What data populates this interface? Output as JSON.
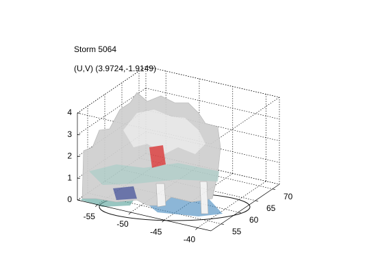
{
  "chart_data": {
    "type": "surface3d",
    "title": "Storm 5064",
    "subtitle": "(U,V) (3.9724,-1.9149)",
    "xlim": [
      -58,
      -38
    ],
    "xticks": [
      -55,
      -50,
      -45,
      -40
    ],
    "ylim": [
      52,
      72
    ],
    "yticks": [
      55,
      60,
      65,
      70
    ],
    "zlim": [
      0,
      4
    ],
    "zticks": [
      0,
      1,
      2,
      3,
      4
    ],
    "grid": true
  }
}
